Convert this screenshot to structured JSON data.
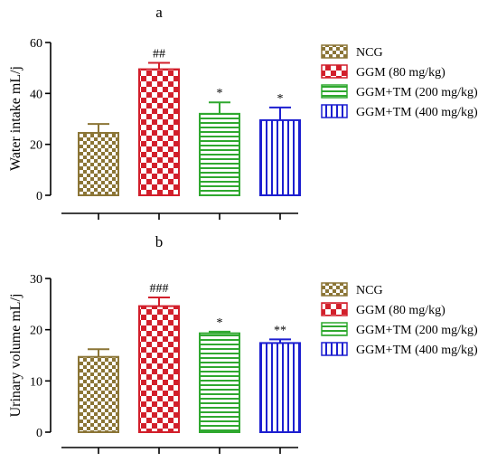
{
  "chart_data": [
    {
      "type": "bar",
      "title": "a",
      "ylabel": "Water intake mL/j",
      "ylim": [
        0,
        60
      ],
      "yticks": [
        0,
        20,
        40,
        60
      ],
      "categories": [
        "NCG",
        "GGM (80 mg/kg)",
        "GGM+TM (200 mg/kg)",
        "GGM+TM (400 mg/kg)"
      ],
      "values": [
        24.5,
        49.5,
        32.0,
        29.5
      ],
      "errors": [
        3.5,
        2.5,
        4.5,
        5.0
      ],
      "annotations": [
        "",
        "##",
        "*",
        "*"
      ]
    },
    {
      "type": "bar",
      "title": "b",
      "ylabel": "Urinary volume mL/j",
      "ylim": [
        0,
        30
      ],
      "yticks": [
        0,
        10,
        20,
        30
      ],
      "categories": [
        "NCG",
        "GGM (80 mg/kg)",
        "GGM+TM (200 mg/kg)",
        "GGM+TM (400 mg/kg)"
      ],
      "values": [
        14.7,
        24.6,
        19.3,
        17.4
      ],
      "errors": [
        1.5,
        1.7,
        0.3,
        0.7
      ],
      "annotations": [
        "",
        "###",
        "*",
        "**"
      ]
    }
  ],
  "series_styles": [
    {
      "color": "#8b7536",
      "pattern": "checker-small"
    },
    {
      "color": "#d21f2b",
      "pattern": "checker-large"
    },
    {
      "color": "#2fa82f",
      "pattern": "horizontal-lines"
    },
    {
      "color": "#1d1fd0",
      "pattern": "vertical-lines"
    }
  ]
}
